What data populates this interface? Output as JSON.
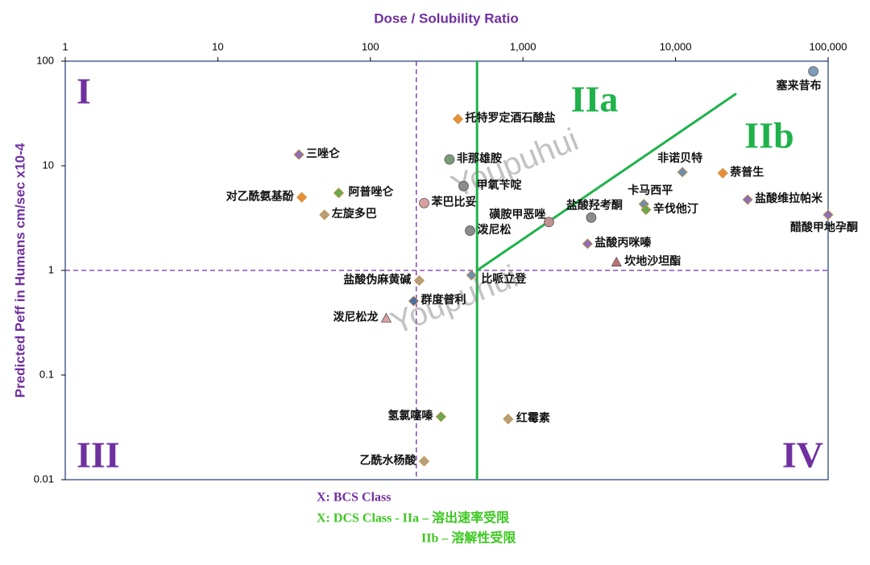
{
  "chart_data": {
    "type": "scatter",
    "x_label": "Dose / Solubility Ratio",
    "y_label": "Predicted Peff in Humans cm/sec x10-4",
    "xscale": "log",
    "yscale": "log",
    "xlim": [
      1,
      100000
    ],
    "ylim": [
      0.01,
      100
    ],
    "xticks": [
      1,
      10,
      100,
      {
        "value": 1000,
        "label": "1,000"
      },
      {
        "value": 10000,
        "label": "10,000"
      },
      {
        "value": 100000,
        "label": "100,000"
      }
    ],
    "yticks": [
      0.01,
      0.1,
      1,
      10,
      100
    ],
    "bcs_lines": {
      "x": 200,
      "y": 1,
      "color": "#7030a0"
    },
    "dcs_lines": {
      "x": 500,
      "y": 1,
      "diagonal_to": {
        "x": 25000,
        "y": 49
      },
      "color": "#1fb24a"
    },
    "regions": [
      {
        "label": "I",
        "color": "#7030a0"
      },
      {
        "label": "IIa",
        "color": "#1fb24a"
      },
      {
        "label": "IIb",
        "color": "#1fb24a"
      },
      {
        "label": "III",
        "color": "#7030a0"
      },
      {
        "label": "IV",
        "color": "#7030a0"
      }
    ],
    "points": [
      {
        "label": "塞来昔布",
        "x": 80000,
        "y": 80,
        "marker": "circle",
        "color": "#7f9db9"
      },
      {
        "label": "托特罗定酒石酸盐",
        "x": 375,
        "y": 28,
        "marker": "diamond",
        "color": "#e69138"
      },
      {
        "label": "三唑仑",
        "x": 34,
        "y": 12.8,
        "marker": "diamond",
        "color": "#8e6fb5"
      },
      {
        "label": "非那雄胺",
        "x": 330,
        "y": 11.5,
        "marker": "circle",
        "color": "#7a9a7a"
      },
      {
        "label": "非诺贝特",
        "x": 11100,
        "y": 8.7,
        "marker": "diamond",
        "color": "#6d8fb0"
      },
      {
        "label": "萘普生",
        "x": 20400,
        "y": 8.5,
        "marker": "diamond",
        "color": "#e69138"
      },
      {
        "label": "甲氧苄啶",
        "x": 408,
        "y": 6.4,
        "marker": "circle",
        "color": "#8c8c8c"
      },
      {
        "label": "阿普唑仑",
        "x": 62,
        "y": 5.5,
        "marker": "diamond",
        "color": "#6aa84f"
      },
      {
        "label": "对乙酰氨基酚",
        "x": 35.5,
        "y": 5.0,
        "marker": "diamond",
        "color": "#e69138"
      },
      {
        "label": "盐酸维拉帕米",
        "x": 29700,
        "y": 4.75,
        "marker": "diamond",
        "color": "#8e6fb5"
      },
      {
        "label": "苯巴比妥",
        "x": 225,
        "y": 4.4,
        "marker": "circle",
        "color": "#d9a0a0"
      },
      {
        "label": "卡马西平",
        "x": 6200,
        "y": 4.3,
        "marker": "diamond",
        "color": "#6d8fb0"
      },
      {
        "label": "辛伐他汀",
        "x": 6400,
        "y": 3.8,
        "marker": "diamond",
        "color": "#6aa84f"
      },
      {
        "label": "左旋多巴",
        "x": 50,
        "y": 3.4,
        "marker": "diamond",
        "color": "#b4a07a"
      },
      {
        "label": "醋酸甲地孕酮",
        "x": 100000,
        "y": 3.4,
        "marker": "diamond",
        "color": "#8e6fb5"
      },
      {
        "label": "盐酸羟考酮",
        "x": 2800,
        "y": 3.2,
        "marker": "circle",
        "color": "#8c8c8c"
      },
      {
        "label": "磺胺甲恶唑",
        "x": 1480,
        "y": 2.9,
        "marker": "circle",
        "color": "#c09090"
      },
      {
        "label": "泼尼松",
        "x": 450,
        "y": 2.4,
        "marker": "circle",
        "color": "#8c8c8c"
      },
      {
        "label": "盐酸丙咪嗪",
        "x": 2650,
        "y": 1.8,
        "marker": "diamond",
        "color": "#8e6fb5"
      },
      {
        "label": "坎地沙坦酯",
        "x": 4100,
        "y": 1.2,
        "marker": "triangle",
        "color": "#c07070"
      },
      {
        "label": "比哌立登",
        "x": 460,
        "y": 0.9,
        "marker": "diamond",
        "color": "#6d8fb0"
      },
      {
        "label": "盐酸伪麻黄碱",
        "x": 209,
        "y": 0.8,
        "marker": "diamond",
        "color": "#b4a07a"
      },
      {
        "label": "群度普利",
        "x": 192,
        "y": 0.51,
        "marker": "diamond",
        "color": "#4a6fa5"
      },
      {
        "label": "泼尼松龙",
        "x": 127,
        "y": 0.35,
        "marker": "triangle",
        "color": "#d9a0a0"
      },
      {
        "label": "氢氯噻嗪",
        "x": 290,
        "y": 0.04,
        "marker": "diamond",
        "color": "#6aa84f"
      },
      {
        "label": "红霉素",
        "x": 800,
        "y": 0.038,
        "marker": "diamond",
        "color": "#b4a07a"
      },
      {
        "label": "乙酰水杨酸",
        "x": 225,
        "y": 0.015,
        "marker": "diamond",
        "color": "#b4a07a"
      }
    ],
    "watermark": "Youpuhui",
    "notes": [
      {
        "text": "X: BCS Class",
        "color": "#7030a0"
      },
      {
        "text": "X: DCS Class - IIa – 溶出速率受限",
        "color": "#3cc820"
      },
      {
        "text": "IIb – 溶解性受限",
        "color": "#3cc820"
      }
    ]
  }
}
